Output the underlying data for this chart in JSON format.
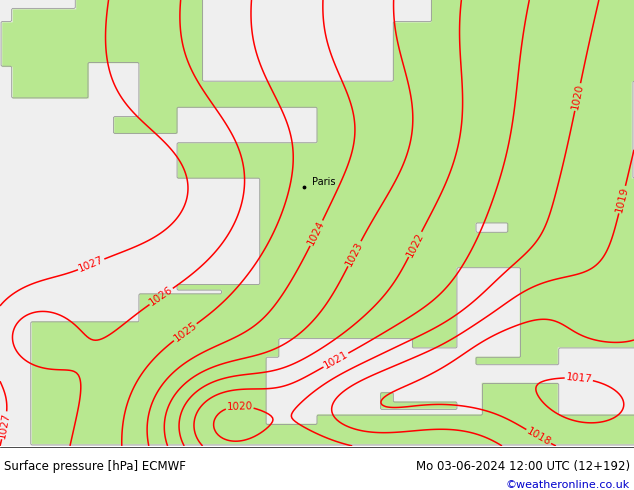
{
  "title_left": "Surface pressure [hPa] ECMWF",
  "title_right": "Mo 03-06-2024 12:00 UTC (12+192)",
  "credit": "©weatheronline.co.uk",
  "background_color": "#ffffff",
  "sea_color": "#f0f0f0",
  "land_color": "#b8e890",
  "contour_color": "#ff0000",
  "coast_color": "#999999",
  "title_color": "#000000",
  "credit_color": "#0000cc",
  "figwidth": 6.34,
  "figheight": 4.9,
  "dpi": 100
}
